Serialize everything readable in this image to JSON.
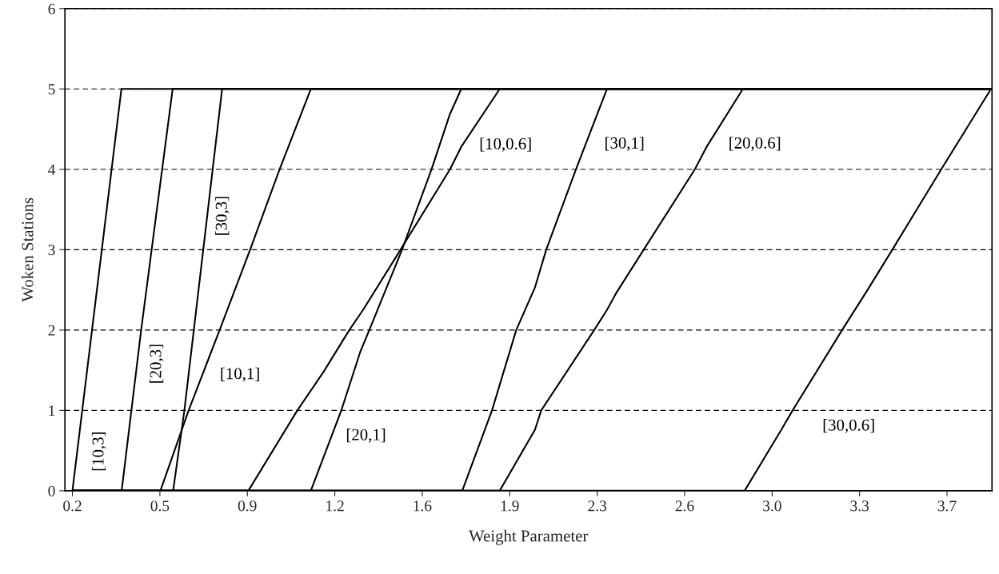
{
  "chart_data": {
    "type": "line",
    "xlabel": "Weight Parameter",
    "ylabel": "Woken Stations",
    "xlim": [
      0.17,
      3.88
    ],
    "ylim": [
      0,
      6
    ],
    "yticks": [
      0,
      1,
      2,
      3,
      4,
      5,
      6
    ],
    "xticks": [
      0.2,
      {
        "value": 0.55,
        "label": "0.5"
      },
      0.9,
      {
        "value": 1.25,
        "label": "1.2"
      },
      1.6,
      {
        "value": 1.95,
        "label": "1.9"
      },
      2.3,
      {
        "value": 2.65,
        "label": "2.6"
      },
      {
        "value": 3.0,
        "label": "3.0"
      },
      {
        "value": 3.35,
        "label": "3.3"
      },
      3.7
    ],
    "grid": "y",
    "legend": false,
    "line_style": "solid",
    "marker": "none",
    "series": [
      {
        "name": "[10,3]",
        "color": "#000000",
        "x": [
          0.2,
          0.396,
          3.88
        ],
        "values": [
          0,
          5,
          5
        ]
      },
      {
        "name": "[20,3]",
        "color": "#000000",
        "x": [
          0.2,
          0.397,
          0.475,
          0.601,
          3.88
        ],
        "values": [
          0,
          0,
          2,
          5,
          5
        ]
      },
      {
        "name": "[30,3]",
        "color": "#000000",
        "x": [
          0.2,
          0.603,
          0.648,
          0.799,
          3.88
        ],
        "values": [
          0,
          0,
          1,
          5,
          5
        ]
      },
      {
        "name": "[10,1]",
        "color": "#000000",
        "x": [
          0.2,
          0.552,
          0.665,
          0.789,
          0.911,
          1.029,
          1.154,
          3.88
        ],
        "values": [
          0,
          0,
          1,
          2,
          3,
          4,
          5,
          5
        ]
      },
      {
        "name": "[10,0.6]",
        "color": "#000000",
        "x": [
          0.2,
          0.904,
          1.1,
          1.205,
          1.308,
          1.365,
          1.513,
          1.711,
          1.756,
          1.91,
          3.88
        ],
        "values": [
          0,
          0,
          1,
          1.48,
          2,
          2.26,
          3,
          4,
          4.28,
          5,
          5
        ]
      },
      {
        "name": "[20,1]",
        "color": "#000000",
        "x": [
          0.2,
          1.154,
          1.276,
          1.352,
          1.388,
          1.519,
          1.637,
          1.711,
          1.756,
          3.88
        ],
        "values": [
          0,
          0,
          1,
          1.73,
          2,
          3,
          4,
          4.69,
          5,
          5
        ]
      },
      {
        "name": "[30,1]",
        "color": "#000000",
        "x": [
          0.2,
          1.76,
          1.879,
          1.976,
          2.051,
          2.096,
          2.215,
          2.339,
          3.88
        ],
        "values": [
          0,
          0,
          1,
          2,
          2.53,
          3,
          4,
          5,
          5
        ]
      },
      {
        "name": "[20,0.6]",
        "color": "#000000",
        "x": [
          0.2,
          1.91,
          2.051,
          2.076,
          2.288,
          2.339,
          2.378,
          2.486,
          2.691,
          2.736,
          2.883,
          3.88
        ],
        "values": [
          0,
          0,
          0.76,
          1,
          2,
          2.25,
          2.47,
          3,
          4,
          4.27,
          5,
          5
        ]
      },
      {
        "name": "[30,0.6]",
        "color": "#000000",
        "x": [
          0.2,
          2.89,
          3.037,
          3.082,
          3.28,
          3.382,
          3.481,
          3.677,
          3.876,
          3.88
        ],
        "values": [
          0,
          0,
          0.76,
          1,
          2,
          2.5,
          3,
          4,
          5,
          5
        ]
      }
    ]
  }
}
